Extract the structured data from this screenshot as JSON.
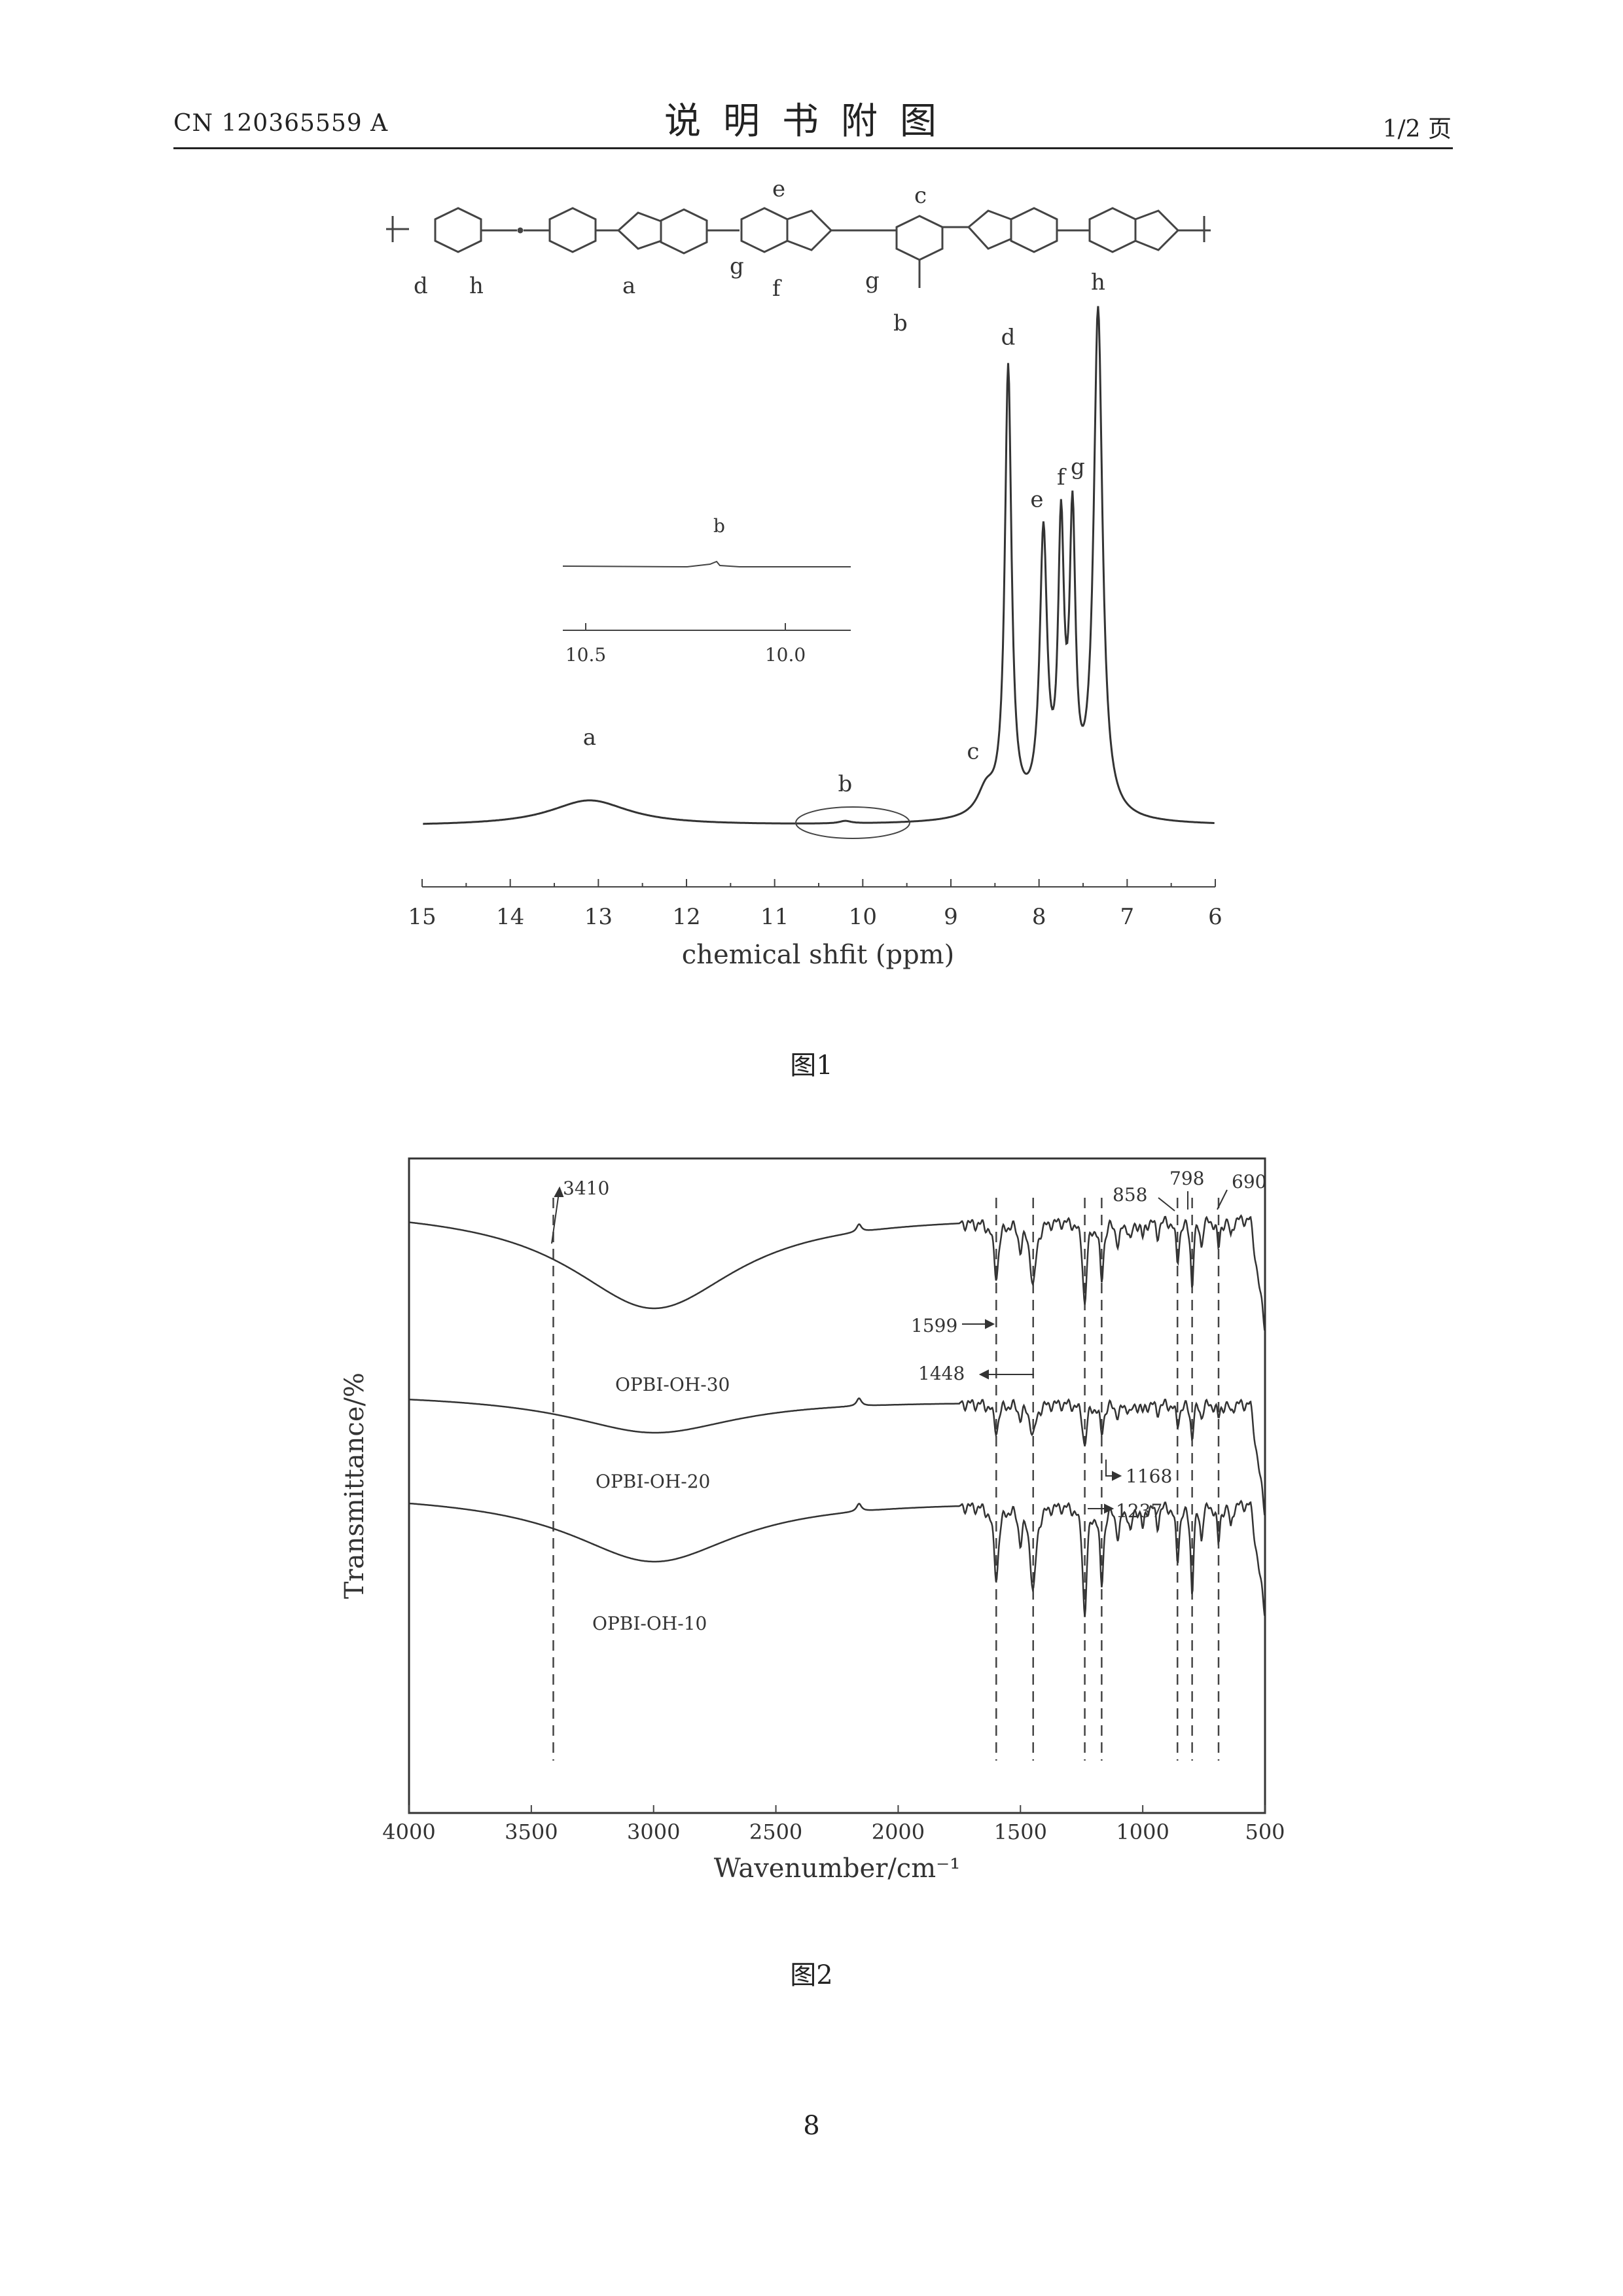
{
  "header": {
    "doc_number": "CN 120365559 A",
    "section_title": "说明书附图",
    "page_indicator": "1/2 页"
  },
  "figure1": {
    "caption": "图1",
    "structure_labels": [
      "d",
      "h",
      "a",
      "g",
      "e",
      "f",
      "g",
      "c",
      "b"
    ],
    "inset": {
      "peak_label": "b",
      "tick_labels": [
        "10.5",
        "10.0"
      ]
    },
    "chart_data": {
      "type": "line",
      "xlabel": "chemical shfit (ppm)",
      "ylabel": "",
      "xlim": [
        15,
        6
      ],
      "x_reversed": true,
      "tick_labels": [
        "15",
        "14",
        "13",
        "12",
        "11",
        "10",
        "9",
        "8",
        "7",
        "6"
      ],
      "grid": false,
      "peaks": [
        {
          "label": "a",
          "ppm": 13.1,
          "relative_height": 0.05
        },
        {
          "label": "b",
          "ppm": 10.2,
          "relative_height": 0.005
        },
        {
          "label": "c",
          "ppm": 8.6,
          "relative_height": 0.05
        },
        {
          "label": "d",
          "ppm": 8.35,
          "relative_height": 0.88
        },
        {
          "label": "e",
          "ppm": 7.95,
          "relative_height": 0.54
        },
        {
          "label": "f",
          "ppm": 7.75,
          "relative_height": 0.53
        },
        {
          "label": "g",
          "ppm": 7.62,
          "relative_height": 0.55
        },
        {
          "label": "h",
          "ppm": 7.33,
          "relative_height": 1.0
        }
      ]
    }
  },
  "figure2": {
    "caption": "图2",
    "chart_data": {
      "type": "line",
      "xlabel": "Wavenumber/cm⁻¹",
      "ylabel": "Transmittance/%",
      "xlim": [
        4000,
        500
      ],
      "x_reversed": true,
      "tick_labels": [
        "4000",
        "3500",
        "3000",
        "2500",
        "2000",
        "1500",
        "1000",
        "500"
      ],
      "grid": false,
      "series": [
        {
          "name": "OPBI-OH-30"
        },
        {
          "name": "OPBI-OH-20"
        },
        {
          "name": "OPBI-OH-10"
        }
      ],
      "marked_bands": [
        3410,
        1599,
        1448,
        1237,
        1168,
        858,
        798,
        690
      ],
      "band_labels": [
        "3410",
        "1599",
        "1448",
        "1237",
        "1168",
        "858",
        "798",
        "690"
      ]
    }
  },
  "footer": {
    "page_number": "8"
  }
}
